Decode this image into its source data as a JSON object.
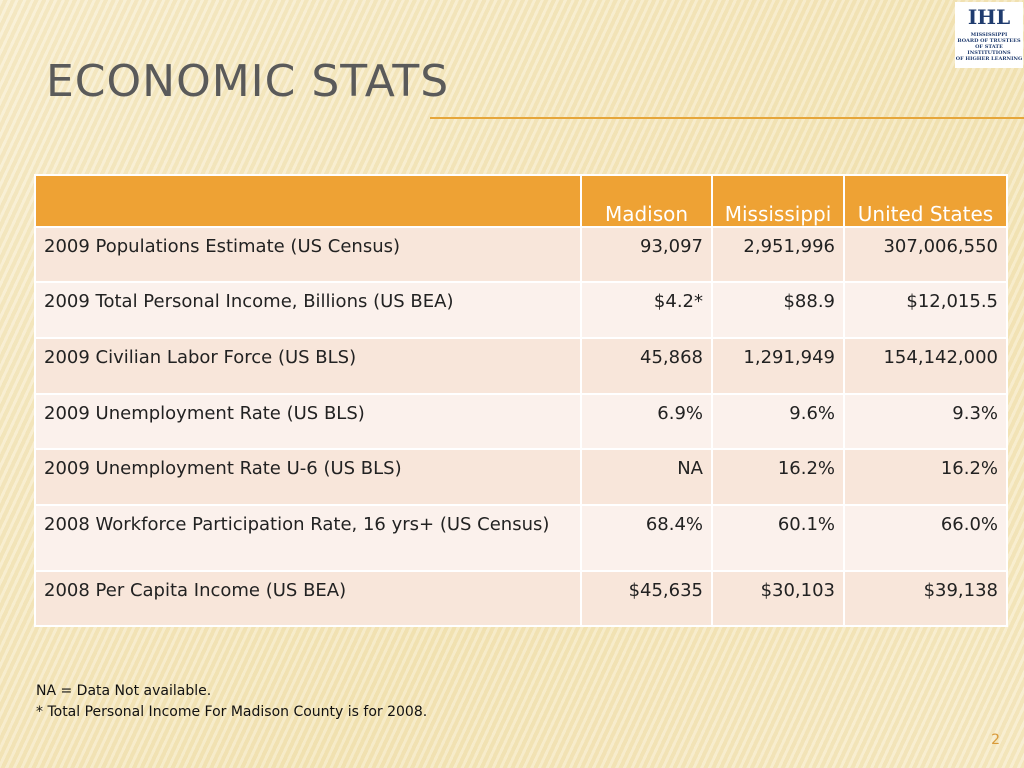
{
  "title": "ECONOMIC STATS",
  "logo": {
    "mark": "IHL",
    "lines": [
      "MISSISSIPPI",
      "BOARD OF TRUSTEES",
      "OF STATE INSTITUTIONS",
      "OF HIGHER LEARNING"
    ]
  },
  "table": {
    "header": [
      "Madison",
      "Mississippi",
      "United States"
    ],
    "rows": [
      [
        "2009 Populations Estimate (US Census)",
        "93,097",
        "2,951,996",
        "307,006,550"
      ],
      [
        "2009 Total Personal Income, Billions (US BEA)",
        "$4.2*",
        "$88.9",
        "$12,015.5"
      ],
      [
        "2009 Civilian Labor Force (US BLS)",
        "45,868",
        "1,291,949",
        "154,142,000"
      ],
      [
        "2009 Unemployment Rate (US BLS)",
        "6.9%",
        "9.6%",
        "9.3%"
      ],
      [
        "2009 Unemployment Rate U-6 (US BLS)",
        "NA",
        "16.2%",
        "16.2%"
      ],
      [
        "2008 Workforce Participation Rate, 16 yrs+ (US Census)",
        "68.4%",
        "60.1%",
        "66.0%"
      ],
      [
        "2008 Per Capita Income (US BEA)",
        "$45,635",
        "$30,103",
        "$39,138"
      ]
    ]
  },
  "footnotes": [
    "NA = Data Not available.",
    "* Total Personal Income For Madison County is for 2008."
  ],
  "page_number": "2"
}
